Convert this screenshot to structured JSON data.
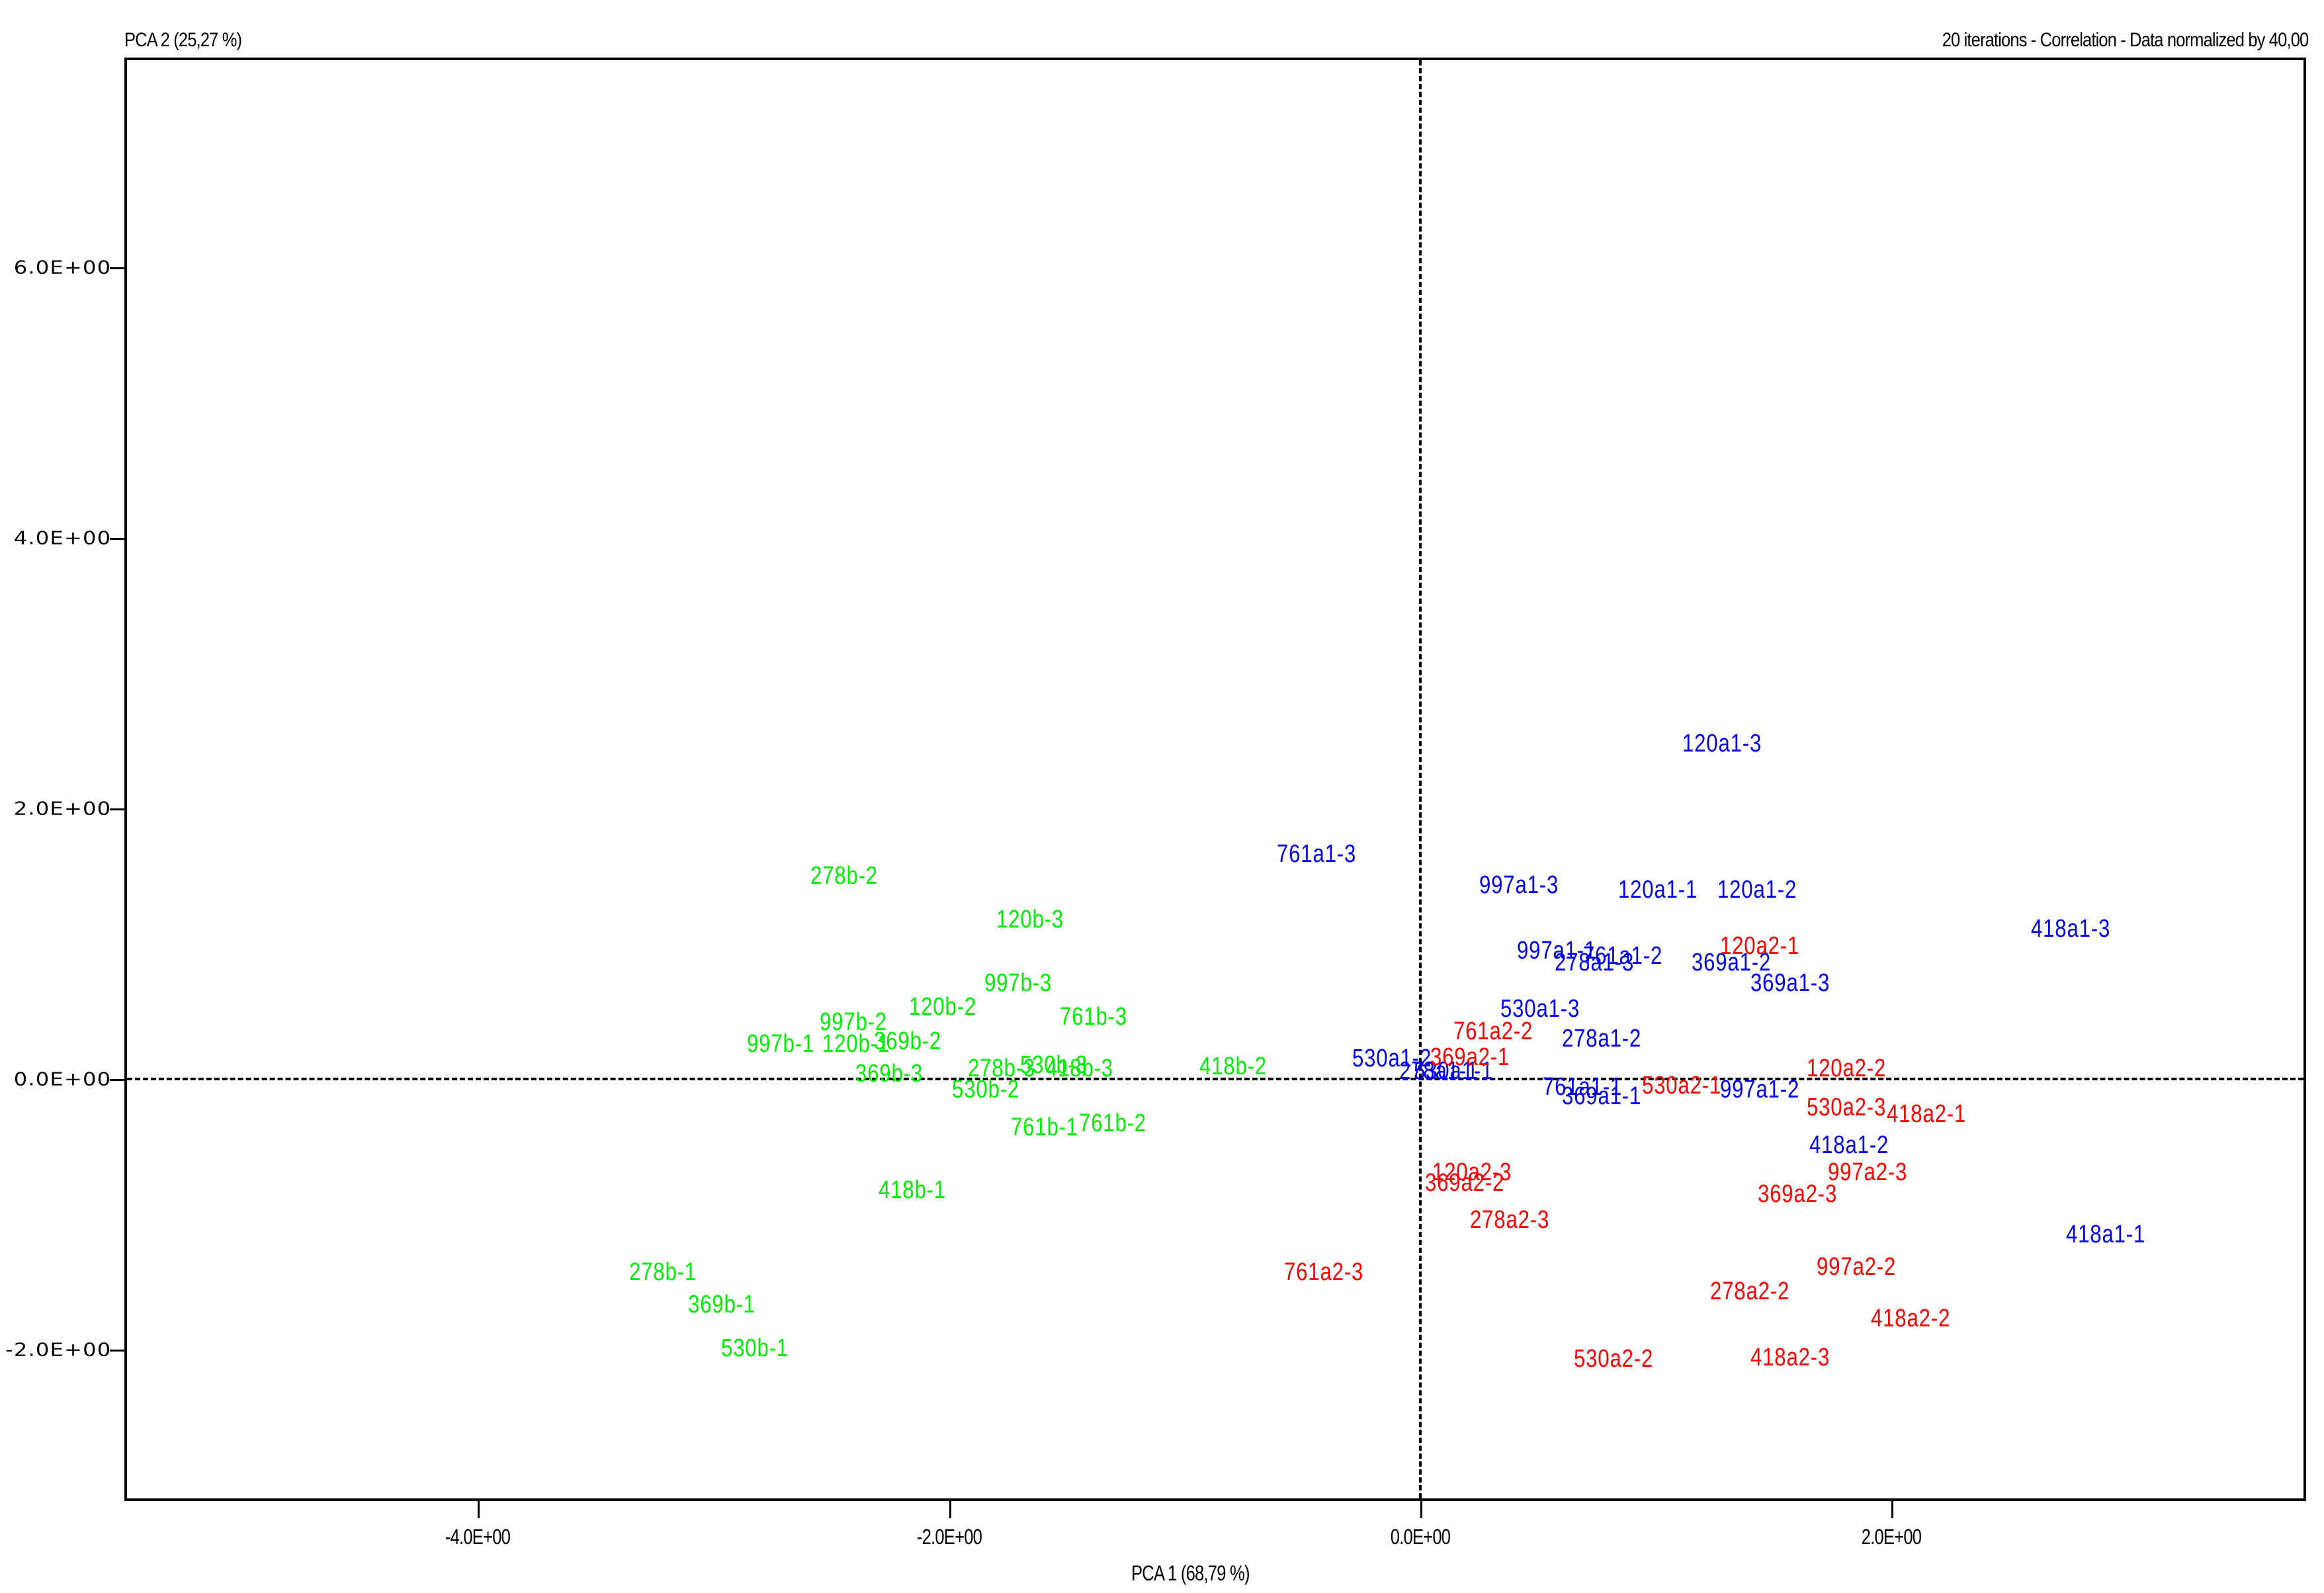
{
  "header": {
    "y_axis_title": "PCA 2 (25,27 %)",
    "subtitle": "20 iterations - Correlation - Data normalized by 40,00"
  },
  "x_axis": {
    "label": "PCA 1 (68,79 %)",
    "ticks": [
      {
        "value": -4.0,
        "label": "-4.0E+00"
      },
      {
        "value": -2.0,
        "label": "-2.0E+00"
      },
      {
        "value": 0.0,
        "label": "0.0E+00"
      },
      {
        "value": 2.0,
        "label": "2.0E+00"
      }
    ]
  },
  "y_axis": {
    "ticks": [
      {
        "value": 6.0,
        "label": "6.0E+00"
      },
      {
        "value": 4.0,
        "label": "4.0E+00"
      },
      {
        "value": 2.0,
        "label": "2.0E+00"
      },
      {
        "value": 0.0,
        "label": "0.0E+00"
      },
      {
        "value": -2.0,
        "label": "-2.0E+00"
      }
    ]
  },
  "colors": {
    "group_b": "#00ee00",
    "group_a1": "#0000ee",
    "group_a2": "#ff0000",
    "axis": "#000000"
  },
  "chart_data": {
    "type": "scatter",
    "title": "20 iterations - Correlation - Data normalized by 40,00",
    "xlabel": "PCA 1 (68,79 %)",
    "ylabel": "PCA 2 (25,27 %)",
    "xlim": [
      -5.5,
      3.76
    ],
    "ylim": [
      -3.12,
      7.55
    ],
    "grid": false,
    "reference_lines": {
      "x": 0,
      "y": 0,
      "style": "dashed"
    },
    "legend": "none (points labeled individually)",
    "series": [
      {
        "name": "b",
        "color": "#00ee00",
        "points": [
          {
            "label": "278b-2",
            "x": -2.6,
            "y": 1.52
          },
          {
            "label": "120b-3",
            "x": -1.81,
            "y": 1.2
          },
          {
            "label": "997b-3",
            "x": -1.86,
            "y": 0.73
          },
          {
            "label": "120b-2",
            "x": -2.18,
            "y": 0.55
          },
          {
            "label": "761b-3",
            "x": -1.54,
            "y": 0.48
          },
          {
            "label": "997b-2",
            "x": -2.56,
            "y": 0.44
          },
          {
            "label": "997b-1",
            "x": -2.87,
            "y": 0.28
          },
          {
            "label": "120b-1",
            "x": -2.55,
            "y": 0.28
          },
          {
            "label": "369b-2",
            "x": -2.33,
            "y": 0.3
          },
          {
            "label": "278b-3",
            "x": -1.93,
            "y": 0.1
          },
          {
            "label": "530b-3",
            "x": -1.71,
            "y": 0.12
          },
          {
            "label": "418b-3",
            "x": -1.6,
            "y": 0.1
          },
          {
            "label": "418b-2",
            "x": -0.95,
            "y": 0.11
          },
          {
            "label": "369b-3",
            "x": -2.41,
            "y": 0.06
          },
          {
            "label": "530b-2",
            "x": -2.0,
            "y": -0.06
          },
          {
            "label": "761b-1",
            "x": -1.75,
            "y": -0.34
          },
          {
            "label": "761b-2",
            "x": -1.46,
            "y": -0.31
          },
          {
            "label": "418b-1",
            "x": -2.31,
            "y": -0.8
          },
          {
            "label": "278b-1",
            "x": -3.37,
            "y": -1.41
          },
          {
            "label": "369b-1",
            "x": -3.12,
            "y": -1.65
          },
          {
            "label": "530b-1",
            "x": -2.98,
            "y": -1.97
          }
        ]
      },
      {
        "name": "a1",
        "color": "#0000ee",
        "points": [
          {
            "label": "120a1-3",
            "x": 1.1,
            "y": 2.5
          },
          {
            "label": "761a1-3",
            "x": -0.62,
            "y": 1.68
          },
          {
            "label": "997a1-3",
            "x": 0.24,
            "y": 1.45
          },
          {
            "label": "120a1-1",
            "x": 0.83,
            "y": 1.42
          },
          {
            "label": "120a1-2",
            "x": 1.25,
            "y": 1.42
          },
          {
            "label": "418a1-3",
            "x": 2.58,
            "y": 1.13
          },
          {
            "label": "997a1-1",
            "x": 0.4,
            "y": 0.97
          },
          {
            "label": "761a1-2",
            "x": 0.68,
            "y": 0.93
          },
          {
            "label": "278a1-3",
            "x": 0.56,
            "y": 0.88
          },
          {
            "label": "369a1-2",
            "x": 1.14,
            "y": 0.88
          },
          {
            "label": "369a1-3",
            "x": 1.39,
            "y": 0.73
          },
          {
            "label": "530a1-3",
            "x": 0.33,
            "y": 0.54
          },
          {
            "label": "278a1-2",
            "x": 0.59,
            "y": 0.32
          },
          {
            "label": "530a1-2",
            "x": -0.3,
            "y": 0.17
          },
          {
            "label": "278a1-1",
            "x": -0.1,
            "y": 0.08
          },
          {
            "label": "530a1-1",
            "x": -0.04,
            "y": 0.08
          },
          {
            "label": "761a1-1",
            "x": 0.51,
            "y": -0.04
          },
          {
            "label": "369a1-1",
            "x": 0.59,
            "y": -0.11
          },
          {
            "label": "997a1-2",
            "x": 1.26,
            "y": -0.06
          },
          {
            "label": "418a1-2",
            "x": 1.64,
            "y": -0.47
          },
          {
            "label": "418a1-1",
            "x": 2.73,
            "y": -1.13
          }
        ]
      },
      {
        "name": "a2",
        "color": "#ff0000",
        "points": [
          {
            "label": "120a2-1",
            "x": 1.26,
            "y": 1.0
          },
          {
            "label": "761a2-2",
            "x": 0.13,
            "y": 0.37
          },
          {
            "label": "369a2-1",
            "x": 0.03,
            "y": 0.18
          },
          {
            "label": "120a2-2",
            "x": 1.63,
            "y": 0.1
          },
          {
            "label": "530a2-1",
            "x": 0.93,
            "y": -0.03
          },
          {
            "label": "530a2-3",
            "x": 1.63,
            "y": -0.19
          },
          {
            "label": "418a2-1",
            "x": 1.97,
            "y": -0.24
          },
          {
            "label": "120a2-3",
            "x": 0.04,
            "y": -0.67
          },
          {
            "label": "369a2-2",
            "x": 0.01,
            "y": -0.75
          },
          {
            "label": "997a2-3",
            "x": 1.72,
            "y": -0.67
          },
          {
            "label": "369a2-3",
            "x": 1.42,
            "y": -0.83
          },
          {
            "label": "278a2-3",
            "x": 0.2,
            "y": -1.02
          },
          {
            "label": "761a2-3",
            "x": -0.59,
            "y": -1.41
          },
          {
            "label": "997a2-2",
            "x": 1.67,
            "y": -1.37
          },
          {
            "label": "278a2-2",
            "x": 1.22,
            "y": -1.55
          },
          {
            "label": "418a2-2",
            "x": 1.9,
            "y": -1.75
          },
          {
            "label": "530a2-2",
            "x": 0.64,
            "y": -2.05
          },
          {
            "label": "418a2-3",
            "x": 1.39,
            "y": -2.04
          }
        ]
      }
    ]
  }
}
